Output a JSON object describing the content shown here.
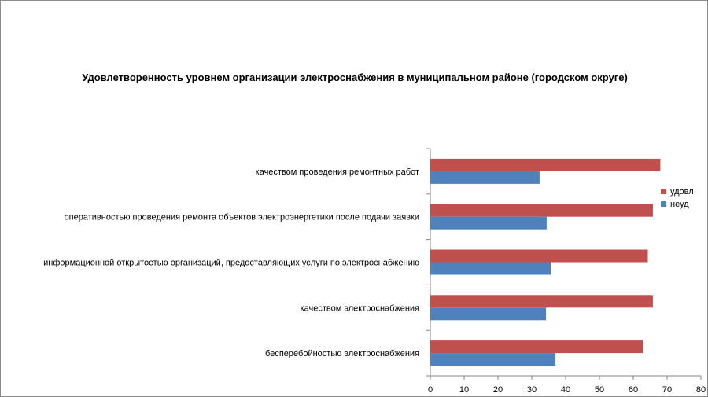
{
  "chart_data": {
    "type": "bar",
    "orientation": "horizontal",
    "title": "Удовлетворенность уровнем организации электроснабжения в муниципальном районе (городском округе)",
    "categories": [
      "качеством проведения ремонтных работ",
      "оперативностью проведения ремонта объектов электроэнергетики после подачи заявки",
      "информационной открытостью организаций, предоставляющих услуги по электроснабжению",
      "качеством электроснабжения",
      "бесперебойностью электроснабжения"
    ],
    "series": [
      {
        "name": "удовл",
        "color": "#c0504d",
        "values": [
          68,
          65.8,
          64.3,
          65.8,
          63
        ]
      },
      {
        "name": "неуд",
        "color": "#4f81bd",
        "values": [
          32.3,
          34.4,
          35.6,
          34.2,
          37
        ]
      }
    ],
    "xlim": [
      0,
      80
    ],
    "xticks": [
      "0",
      "10",
      "20",
      "30",
      "40",
      "50",
      "60",
      "70",
      "80"
    ],
    "legend_position": "right",
    "grid": false
  }
}
